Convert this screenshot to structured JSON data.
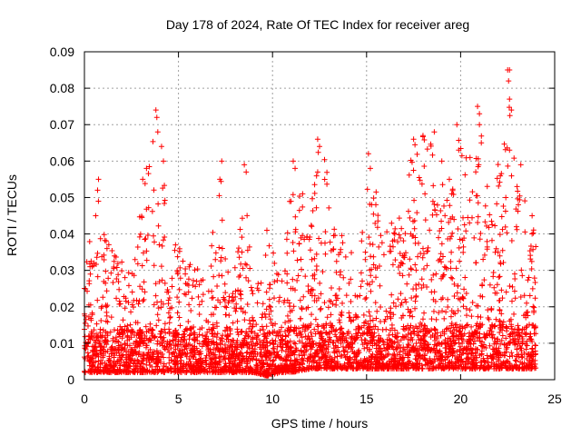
{
  "chart_data": {
    "type": "scatter",
    "title": "Day 178 of 2024, Rate Of TEC Index for receiver areg",
    "xlabel": "GPS time / hours",
    "ylabel": "ROTI / TECUs",
    "xlim": [
      0,
      25
    ],
    "ylim": [
      0,
      0.09
    ],
    "xticks": [
      0,
      5,
      10,
      15,
      20,
      25
    ],
    "xtick_labels": [
      "0",
      "5",
      "10",
      "15",
      "20",
      "25"
    ],
    "yticks": [
      0,
      0.01,
      0.02,
      0.03,
      0.04,
      0.05,
      0.06,
      0.07,
      0.08,
      0.09
    ],
    "ytick_labels": [
      "0",
      "0.01",
      "0.02",
      "0.03",
      "0.04",
      "0.05",
      "0.06",
      "0.07",
      "0.08",
      "0.09"
    ],
    "grid": true,
    "marker": "+",
    "color": "#ff0000",
    "series": [
      {
        "name": "ROTI",
        "x_range": [
          0,
          24
        ],
        "envelope": [
          {
            "x": 0.0,
            "min": 0.002,
            "max": 0.031
          },
          {
            "x": 0.5,
            "min": 0.002,
            "max": 0.045
          },
          {
            "x": 0.8,
            "min": 0.002,
            "max": 0.055
          },
          {
            "x": 1.5,
            "min": 0.002,
            "max": 0.035
          },
          {
            "x": 2.5,
            "min": 0.002,
            "max": 0.03
          },
          {
            "x": 3.3,
            "min": 0.002,
            "max": 0.058
          },
          {
            "x": 3.9,
            "min": 0.002,
            "max": 0.073
          },
          {
            "x": 4.5,
            "min": 0.002,
            "max": 0.04
          },
          {
            "x": 5.5,
            "min": 0.002,
            "max": 0.033
          },
          {
            "x": 6.5,
            "min": 0.002,
            "max": 0.03
          },
          {
            "x": 7.3,
            "min": 0.002,
            "max": 0.06
          },
          {
            "x": 7.8,
            "min": 0.002,
            "max": 0.02
          },
          {
            "x": 8.5,
            "min": 0.002,
            "max": 0.059
          },
          {
            "x": 9.0,
            "min": 0.002,
            "max": 0.02
          },
          {
            "x": 9.7,
            "min": 0.001,
            "max": 0.04
          },
          {
            "x": 10.5,
            "min": 0.002,
            "max": 0.03
          },
          {
            "x": 11.0,
            "min": 0.002,
            "max": 0.06
          },
          {
            "x": 12.0,
            "min": 0.003,
            "max": 0.045
          },
          {
            "x": 12.5,
            "min": 0.003,
            "max": 0.066
          },
          {
            "x": 13.5,
            "min": 0.003,
            "max": 0.045
          },
          {
            "x": 14.6,
            "min": 0.003,
            "max": 0.03
          },
          {
            "x": 15.1,
            "min": 0.003,
            "max": 0.061
          },
          {
            "x": 16.0,
            "min": 0.003,
            "max": 0.045
          },
          {
            "x": 17.0,
            "min": 0.003,
            "max": 0.05
          },
          {
            "x": 17.5,
            "min": 0.003,
            "max": 0.066
          },
          {
            "x": 18.3,
            "min": 0.003,
            "max": 0.068
          },
          {
            "x": 19.3,
            "min": 0.003,
            "max": 0.05
          },
          {
            "x": 19.8,
            "min": 0.003,
            "max": 0.07
          },
          {
            "x": 20.4,
            "min": 0.003,
            "max": 0.06
          },
          {
            "x": 20.9,
            "min": 0.003,
            "max": 0.075
          },
          {
            "x": 21.7,
            "min": 0.003,
            "max": 0.045
          },
          {
            "x": 22.5,
            "min": 0.003,
            "max": 0.085
          },
          {
            "x": 23.0,
            "min": 0.003,
            "max": 0.055
          },
          {
            "x": 23.7,
            "min": 0.003,
            "max": 0.045
          }
        ],
        "peaks": [
          {
            "x": 0.3,
            "y": 0.031
          },
          {
            "x": 0.6,
            "y": 0.045
          },
          {
            "x": 0.7,
            "y": 0.052
          },
          {
            "x": 0.75,
            "y": 0.055
          },
          {
            "x": 1.2,
            "y": 0.036
          },
          {
            "x": 3.1,
            "y": 0.055
          },
          {
            "x": 3.3,
            "y": 0.058
          },
          {
            "x": 3.8,
            "y": 0.074
          },
          {
            "x": 3.85,
            "y": 0.072
          },
          {
            "x": 3.9,
            "y": 0.068
          },
          {
            "x": 4.1,
            "y": 0.064
          },
          {
            "x": 4.2,
            "y": 0.06
          },
          {
            "x": 7.2,
            "y": 0.055
          },
          {
            "x": 7.3,
            "y": 0.06
          },
          {
            "x": 8.5,
            "y": 0.059
          },
          {
            "x": 8.6,
            "y": 0.057
          },
          {
            "x": 9.7,
            "y": 0.041
          },
          {
            "x": 11.1,
            "y": 0.06
          },
          {
            "x": 11.2,
            "y": 0.058
          },
          {
            "x": 11.6,
            "y": 0.051
          },
          {
            "x": 12.4,
            "y": 0.066
          },
          {
            "x": 12.5,
            "y": 0.064
          },
          {
            "x": 12.4,
            "y": 0.057
          },
          {
            "x": 15.1,
            "y": 0.062
          },
          {
            "x": 15.2,
            "y": 0.058
          },
          {
            "x": 17.5,
            "y": 0.066
          },
          {
            "x": 18.0,
            "y": 0.067
          },
          {
            "x": 18.6,
            "y": 0.068
          },
          {
            "x": 19.0,
            "y": 0.06
          },
          {
            "x": 19.4,
            "y": 0.055
          },
          {
            "x": 19.8,
            "y": 0.07
          },
          {
            "x": 19.9,
            "y": 0.063
          },
          {
            "x": 20.5,
            "y": 0.061
          },
          {
            "x": 20.9,
            "y": 0.075
          },
          {
            "x": 21.0,
            "y": 0.073
          },
          {
            "x": 21.0,
            "y": 0.07
          },
          {
            "x": 21.1,
            "y": 0.065
          },
          {
            "x": 22.5,
            "y": 0.085
          },
          {
            "x": 22.6,
            "y": 0.085
          },
          {
            "x": 22.55,
            "y": 0.082
          },
          {
            "x": 22.6,
            "y": 0.077
          },
          {
            "x": 22.7,
            "y": 0.074
          },
          {
            "x": 22.6,
            "y": 0.063
          },
          {
            "x": 23.2,
            "y": 0.059
          },
          {
            "x": 23.0,
            "y": 0.053
          },
          {
            "x": 23.8,
            "y": 0.045
          },
          {
            "x": 23.8,
            "y": 0.04
          }
        ]
      }
    ]
  }
}
